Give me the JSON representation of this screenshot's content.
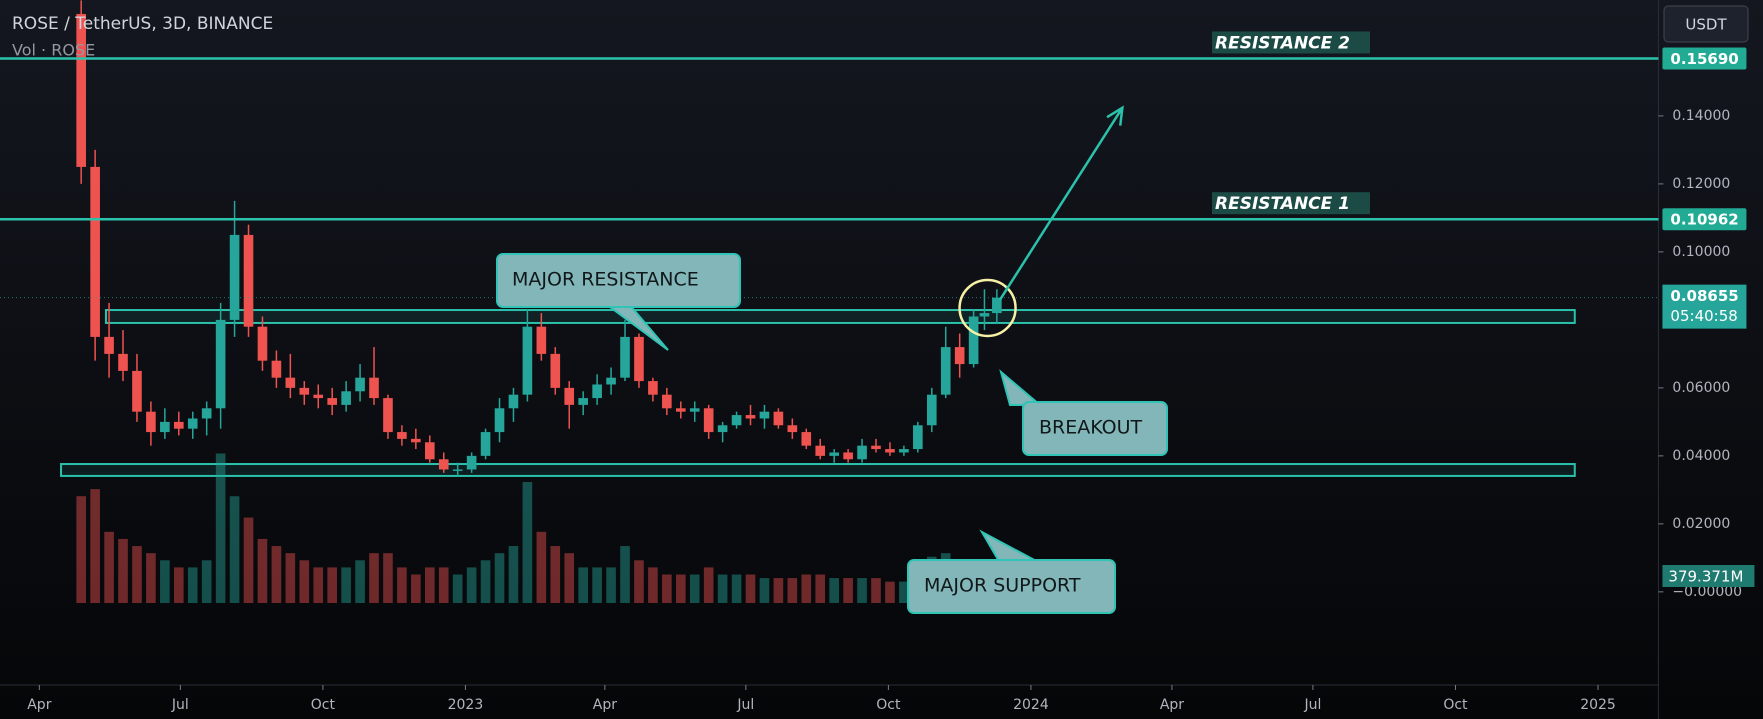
{
  "header": {
    "symbol": "ROSE / TetherUS, 3D, BINANCE",
    "volume_title": "Vol · ROSE",
    "currency": "USDT"
  },
  "chart_data": {
    "type": "candlestick",
    "xlim": [
      -25.4,
      1045
    ],
    "ylim": [
      -0.0274,
      0.1741
    ],
    "vlim": [
      0,
      8470
    ],
    "grid": false,
    "up_color": "#26a69a",
    "down_color": "#ef5350",
    "xticks": [
      {
        "value": 0,
        "label": "Apr"
      },
      {
        "value": 91,
        "label": "Jul"
      },
      {
        "value": 183,
        "label": "Oct"
      },
      {
        "value": 275,
        "label": "2023"
      },
      {
        "value": 365,
        "label": "Apr"
      },
      {
        "value": 456,
        "label": "Jul"
      },
      {
        "value": 548,
        "label": "Oct"
      },
      {
        "value": 640,
        "label": "2024"
      },
      {
        "value": 731,
        "label": "Apr"
      },
      {
        "value": 822,
        "label": "Jul"
      },
      {
        "value": 914,
        "label": "Oct"
      },
      {
        "value": 1006,
        "label": "2025"
      }
    ],
    "yticks": [
      {
        "value": 0.14,
        "label": "0.14000"
      },
      {
        "value": 0.12,
        "label": "0.12000"
      },
      {
        "value": 0.1,
        "label": "0.10000"
      },
      {
        "value": 0.06,
        "label": "0.06000"
      },
      {
        "value": 0.04,
        "label": "0.04000"
      },
      {
        "value": 0.02,
        "label": "0.02000"
      },
      {
        "value": 0,
        "label": "−0.00000"
      }
    ],
    "x": [
      27,
      36,
      45,
      54,
      63,
      72,
      81,
      90,
      99,
      108,
      117,
      126,
      135,
      144,
      153,
      162,
      171,
      180,
      189,
      198,
      207,
      216,
      225,
      234,
      243,
      252,
      261,
      270,
      279,
      288,
      297,
      306,
      315,
      324,
      333,
      342,
      351,
      360,
      369,
      378,
      387,
      396,
      405,
      414,
      423,
      432,
      441,
      450,
      459,
      468,
      477,
      486,
      495,
      504,
      513,
      522,
      531,
      540,
      549,
      558,
      567,
      576,
      585,
      594,
      603,
      610,
      618
    ],
    "open": [
      0.17,
      0.125,
      0.075,
      0.07,
      0.065,
      0.053,
      0.047,
      0.05,
      0.048,
      0.051,
      0.054,
      0.08,
      0.105,
      0.078,
      0.068,
      0.063,
      0.06,
      0.058,
      0.057,
      0.055,
      0.059,
      0.063,
      0.057,
      0.047,
      0.045,
      0.044,
      0.039,
      0.036,
      0.036,
      0.04,
      0.047,
      0.054,
      0.058,
      0.078,
      0.07,
      0.06,
      0.055,
      0.057,
      0.061,
      0.063,
      0.075,
      0.062,
      0.058,
      0.054,
      0.053,
      0.054,
      0.047,
      0.049,
      0.052,
      0.051,
      0.053,
      0.049,
      0.047,
      0.043,
      0.04,
      0.041,
      0.039,
      0.043,
      0.042,
      0.041,
      0.042,
      0.049,
      0.058,
      0.072,
      0.067,
      0.081,
      0.082
    ],
    "high": [
      0.174,
      0.13,
      0.085,
      0.077,
      0.07,
      0.056,
      0.054,
      0.053,
      0.053,
      0.056,
      0.085,
      0.115,
      0.108,
      0.081,
      0.071,
      0.07,
      0.062,
      0.061,
      0.06,
      0.062,
      0.067,
      0.072,
      0.058,
      0.049,
      0.048,
      0.046,
      0.041,
      0.038,
      0.041,
      0.048,
      0.057,
      0.06,
      0.083,
      0.082,
      0.072,
      0.062,
      0.059,
      0.064,
      0.066,
      0.08,
      0.076,
      0.063,
      0.06,
      0.056,
      0.056,
      0.055,
      0.05,
      0.053,
      0.055,
      0.055,
      0.054,
      0.051,
      0.048,
      0.045,
      0.042,
      0.042,
      0.045,
      0.045,
      0.044,
      0.043,
      0.05,
      0.06,
      0.078,
      0.076,
      0.083,
      0.089,
      0.089
    ],
    "low": [
      0.12,
      0.068,
      0.063,
      0.062,
      0.05,
      0.043,
      0.045,
      0.046,
      0.045,
      0.046,
      0.048,
      0.075,
      0.075,
      0.065,
      0.06,
      0.057,
      0.055,
      0.054,
      0.052,
      0.053,
      0.056,
      0.055,
      0.045,
      0.043,
      0.042,
      0.038,
      0.035,
      0.034,
      0.035,
      0.039,
      0.044,
      0.05,
      0.056,
      0.068,
      0.058,
      0.048,
      0.052,
      0.055,
      0.058,
      0.062,
      0.06,
      0.056,
      0.052,
      0.051,
      0.05,
      0.045,
      0.044,
      0.048,
      0.049,
      0.048,
      0.048,
      0.045,
      0.042,
      0.039,
      0.038,
      0.038,
      0.038,
      0.041,
      0.04,
      0.04,
      0.041,
      0.047,
      0.057,
      0.063,
      0.066,
      0.077,
      0.079
    ],
    "close": [
      0.125,
      0.075,
      0.07,
      0.065,
      0.053,
      0.047,
      0.05,
      0.048,
      0.051,
      0.054,
      0.08,
      0.105,
      0.078,
      0.068,
      0.063,
      0.06,
      0.058,
      0.057,
      0.055,
      0.059,
      0.063,
      0.057,
      0.047,
      0.045,
      0.044,
      0.039,
      0.036,
      0.036,
      0.04,
      0.047,
      0.054,
      0.058,
      0.078,
      0.07,
      0.06,
      0.055,
      0.057,
      0.061,
      0.063,
      0.075,
      0.062,
      0.058,
      0.054,
      0.053,
      0.054,
      0.047,
      0.049,
      0.052,
      0.051,
      0.053,
      0.049,
      0.047,
      0.043,
      0.04,
      0.041,
      0.039,
      0.043,
      0.042,
      0.041,
      0.042,
      0.049,
      0.058,
      0.072,
      0.067,
      0.081,
      0.082,
      0.08655
    ],
    "volume": [
      1500,
      1600,
      1000,
      900,
      800,
      700,
      600,
      500,
      500,
      600,
      2100,
      1500,
      1200,
      900,
      800,
      700,
      600,
      500,
      500,
      500,
      600,
      700,
      700,
      500,
      400,
      500,
      500,
      400,
      500,
      600,
      700,
      800,
      1700,
      1000,
      800,
      700,
      500,
      500,
      500,
      800,
      600,
      500,
      400,
      400,
      400,
      500,
      400,
      400,
      400,
      350,
      350,
      350,
      400,
      400,
      350,
      350,
      350,
      350,
      300,
      300,
      500,
      650,
      700,
      600,
      550,
      500,
      379.371
    ],
    "volume_last_label": "379.371M",
    "last_price": 0.08655,
    "countdown": "05:40:58",
    "levels": [
      {
        "name": "RESISTANCE 2",
        "value": 0.1569,
        "label": "0.15690"
      },
      {
        "name": "RESISTANCE 1",
        "value": 0.10962,
        "label": "0.10962"
      }
    ],
    "zones": [
      {
        "name": "MAJOR RESISTANCE",
        "ylim": [
          0.0791,
          0.0829
        ],
        "xlim": [
          43,
          991
        ]
      },
      {
        "name": "MAJOR SUPPORT",
        "ylim": [
          0.0341,
          0.0376
        ],
        "xlim": [
          14,
          991
        ]
      }
    ],
    "breakout": {
      "label": "BREAKOUT",
      "x": 612,
      "y": 0.0835
    },
    "projection": {
      "x": [
        620,
        699
      ],
      "y": [
        0.0859,
        0.1424
      ]
    }
  }
}
